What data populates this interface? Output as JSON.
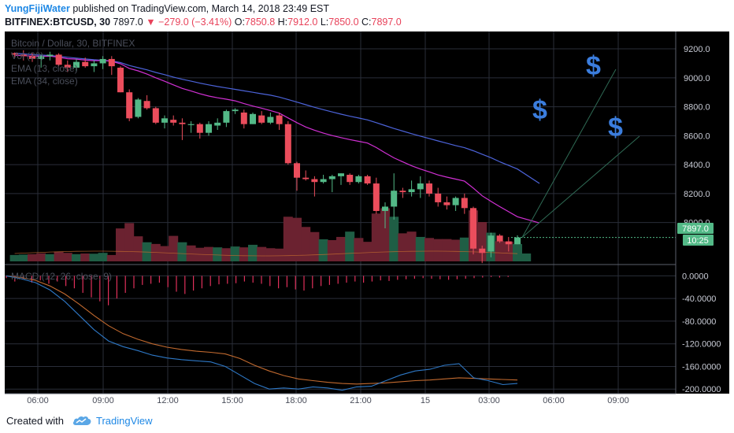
{
  "header": {
    "author": "YungFijiWater",
    "published": "published on TradingView.com, March 14, 2018 23:49 EST",
    "symbol": "BITFINEX:BTCUSD, 30",
    "last": "7897.0",
    "change": "−279.0 (−3.41%)",
    "o_label": "O:",
    "o_value": "7850.8",
    "h_label": "H:",
    "h_value": "7912.0",
    "l_label": "L:",
    "l_value": "7850.0",
    "c_label": "C:",
    "c_value": "7897.0"
  },
  "legend": {
    "title": "Bitcoin / Dollar, 30, BITFINEX",
    "vol": "Vol (20)",
    "ema13": "EMA (13, close)",
    "ema34": "EMA (34, close)"
  },
  "macd_legend": "MACD (12, 26, close, 9)",
  "price_badge": "7897.0",
  "time_badge": "10:25",
  "annotation_symbol": "$",
  "footer": {
    "created": "Created with",
    "brand": "TradingView"
  },
  "colors": {
    "up": "#53b987",
    "down": "#eb4d5c",
    "ema13": "#d130d4",
    "ema34": "#4c63d9",
    "macd": "#2e78c6",
    "signal": "#c26a2f",
    "accent": "#1e88e5"
  },
  "chart_data": {
    "type": "candlestick",
    "title": "Bitcoin / Dollar, 30, BITFINEX",
    "x_ticks": [
      "06:00",
      "09:00",
      "12:00",
      "15:00",
      "18:00",
      "21:00",
      "15",
      "03:00",
      "06:00",
      "09:00"
    ],
    "price_ticks": [
      9200,
      9000,
      8800,
      8600,
      8400,
      8200,
      8000
    ],
    "macd_ticks": [
      "0.0000",
      "-40.0000",
      "-80.0000",
      "-120.0000",
      "-160.0000",
      "-200.0000"
    ],
    "ylim_price": [
      7710,
      9320
    ],
    "ylim_macd": [
      -208,
      20
    ],
    "candles": [
      [
        9170,
        9175,
        9140,
        9160
      ],
      [
        9160,
        9190,
        9120,
        9150
      ],
      [
        9150,
        9170,
        9110,
        9130
      ],
      [
        9130,
        9160,
        9070,
        9150
      ],
      [
        9150,
        9180,
        9120,
        9160
      ],
      [
        9160,
        9170,
        9080,
        9090
      ],
      [
        9090,
        9120,
        9040,
        9070
      ],
      [
        9070,
        9130,
        9040,
        9110
      ],
      [
        9110,
        9140,
        9070,
        9080
      ],
      [
        9080,
        9120,
        9040,
        9100
      ],
      [
        9100,
        9150,
        9060,
        9130
      ],
      [
        9130,
        9150,
        9020,
        9080
      ],
      [
        9070,
        9080,
        8900,
        8900
      ],
      [
        8900,
        8920,
        8700,
        8720
      ],
      [
        8730,
        8860,
        8720,
        8850
      ],
      [
        8840,
        8880,
        8780,
        8790
      ],
      [
        8790,
        8800,
        8680,
        8690
      ],
      [
        8690,
        8740,
        8650,
        8720
      ],
      [
        8710,
        8740,
        8670,
        8690
      ],
      [
        8690,
        8720,
        8570,
        8680
      ],
      [
        8680,
        8700,
        8620,
        8680
      ],
      [
        8680,
        8690,
        8580,
        8620
      ],
      [
        8620,
        8700,
        8600,
        8680
      ],
      [
        8670,
        8720,
        8640,
        8690
      ],
      [
        8690,
        8780,
        8660,
        8770
      ],
      [
        8770,
        8790,
        8750,
        8780
      ],
      [
        8760,
        8780,
        8650,
        8680
      ],
      [
        8680,
        8760,
        8680,
        8750
      ],
      [
        8740,
        8770,
        8680,
        8690
      ],
      [
        8690,
        8760,
        8680,
        8730
      ],
      [
        8740,
        8760,
        8640,
        8680
      ],
      [
        8680,
        8700,
        8400,
        8410
      ],
      [
        8410,
        8420,
        8220,
        8310
      ],
      [
        8310,
        8360,
        8290,
        8300
      ],
      [
        8300,
        8320,
        8180,
        8280
      ],
      [
        8280,
        8330,
        8270,
        8300
      ],
      [
        8300,
        8330,
        8210,
        8320
      ],
      [
        8320,
        8340,
        8260,
        8340
      ],
      [
        8330,
        8340,
        8260,
        8280
      ],
      [
        8280,
        8330,
        8270,
        8320
      ],
      [
        8320,
        8330,
        8260,
        8270
      ],
      [
        8270,
        8310,
        8060,
        8080
      ],
      [
        8080,
        8140,
        7960,
        8110
      ],
      [
        8110,
        8340,
        8020,
        8220
      ],
      [
        8220,
        8240,
        8170,
        8210
      ],
      [
        8210,
        8290,
        8180,
        8230
      ],
      [
        8230,
        8320,
        8170,
        8270
      ],
      [
        8270,
        8290,
        8180,
        8200
      ],
      [
        8200,
        8240,
        8110,
        8140
      ],
      [
        8140,
        8180,
        8090,
        8120
      ],
      [
        8120,
        8180,
        8080,
        8170
      ],
      [
        8170,
        8200,
        8060,
        8100
      ],
      [
        8100,
        8110,
        7780,
        7820
      ],
      [
        7820,
        7840,
        7720,
        7790
      ],
      [
        7800,
        7930,
        7760,
        7910
      ],
      [
        7910,
        7920,
        7860,
        7870
      ],
      [
        7870,
        7900,
        7800,
        7850
      ],
      [
        7850,
        7912,
        7850,
        7897
      ]
    ],
    "volume": [
      [
        "up",
        30
      ],
      [
        "up",
        32
      ],
      [
        "down",
        34
      ],
      [
        "down",
        38
      ],
      [
        "up",
        34
      ],
      [
        "down",
        46
      ],
      [
        "down",
        40
      ],
      [
        "up",
        34
      ],
      [
        "down",
        37
      ],
      [
        "up",
        36
      ],
      [
        "up",
        40
      ],
      [
        "down",
        30
      ],
      [
        "down",
        155
      ],
      [
        "down",
        180
      ],
      [
        "down",
        118
      ],
      [
        "up",
        90
      ],
      [
        "down",
        82
      ],
      [
        "down",
        72
      ],
      [
        "down",
        120
      ],
      [
        "up",
        90
      ],
      [
        "down",
        75
      ],
      [
        "down",
        64
      ],
      [
        "down",
        68
      ],
      [
        "up",
        66
      ],
      [
        "down",
        62
      ],
      [
        "up",
        70
      ],
      [
        "down",
        66
      ],
      [
        "up",
        78
      ],
      [
        "down",
        68
      ],
      [
        "down",
        62
      ],
      [
        "down",
        60
      ],
      [
        "down",
        210
      ],
      [
        "down",
        205
      ],
      [
        "down",
        162
      ],
      [
        "down",
        138
      ],
      [
        "up",
        104
      ],
      [
        "down",
        100
      ],
      [
        "down",
        115
      ],
      [
        "up",
        140
      ],
      [
        "down",
        110
      ],
      [
        "down",
        92
      ],
      [
        "down",
        225
      ],
      [
        "down",
        250
      ],
      [
        "up",
        210
      ],
      [
        "down",
        132
      ],
      [
        "down",
        140
      ],
      [
        "up",
        115
      ],
      [
        "down",
        110
      ],
      [
        "down",
        105
      ],
      [
        "down",
        105
      ],
      [
        "down",
        102
      ],
      [
        "up",
        112
      ],
      [
        "down",
        240
      ],
      [
        "down",
        185
      ],
      [
        "up",
        135
      ],
      [
        "down",
        95
      ],
      [
        "down",
        93
      ],
      [
        "up",
        82
      ]
    ],
    "ema13": [
      9155,
      9153,
      9149,
      9149,
      9150,
      9142,
      9132,
      9129,
      9122,
      9118,
      9120,
      9114,
      9097,
      9065,
      9048,
      9026,
      9000,
      8976,
      8951,
      8927,
      8909,
      8890,
      8874,
      8862,
      8852,
      8841,
      8822,
      8805,
      8790,
      8774,
      8756,
      8723,
      8690,
      8660,
      8638,
      8618,
      8601,
      8587,
      8573,
      8561,
      8549,
      8518,
      8482,
      8447,
      8419,
      8392,
      8370,
      8350,
      8329,
      8314,
      8300,
      8286,
      8238,
      8185,
      8147,
      8110,
      8075,
      8040
    ],
    "ema34": [
      9170,
      9165,
      9160,
      9157,
      9154,
      9148,
      9142,
      9136,
      9130,
      9125,
      9121,
      9117,
      9105,
      9085,
      9070,
      9055,
      9037,
      9022,
      9005,
      8990,
      8977,
      8963,
      8951,
      8940,
      8930,
      8920,
      8910,
      8900,
      8890,
      8880,
      8867,
      8850,
      8832,
      8814,
      8796,
      8780,
      8764,
      8749,
      8735,
      8722,
      8709,
      8690,
      8670,
      8650,
      8632,
      8614,
      8597,
      8581,
      8564,
      8548,
      8532,
      8517,
      8496,
      8472,
      8448,
      8420,
      8395,
      8370
    ],
    "ema13_extension_end": 7997,
    "ema34_extension_end": 8270,
    "macd_line": [
      0,
      -5,
      -12,
      -25,
      -45,
      -70,
      -95,
      -115,
      -125,
      -132,
      -140,
      -145,
      -148,
      -150,
      -152,
      -160,
      -175,
      -190,
      -200,
      -198,
      -200,
      -196,
      -198,
      -202,
      -196,
      -195,
      -185,
      -175,
      -168,
      -165,
      -158,
      -155,
      -180,
      -185,
      -192,
      -190
    ],
    "signal_line": [
      0,
      -3,
      -8,
      -18,
      -32,
      -50,
      -70,
      -88,
      -102,
      -112,
      -120,
      -126,
      -130,
      -133,
      -135,
      -138,
      -146,
      -158,
      -168,
      -176,
      -182,
      -185,
      -188,
      -190,
      -191,
      -190,
      -189,
      -187,
      -185,
      -184,
      -182,
      -180,
      -181,
      -182,
      -183,
      -184
    ],
    "macd_hist": [
      -4,
      -10,
      -5,
      -12,
      -8,
      -14,
      -10,
      -18,
      -22,
      -30,
      -38,
      -45,
      -52,
      -40,
      -30,
      -22,
      -16,
      -14,
      -12,
      -20,
      -28,
      -32,
      -26,
      -22,
      -18,
      -15,
      -14,
      -13,
      -10,
      -12,
      -14,
      -18,
      -22,
      -20,
      -24,
      -26,
      -22,
      -18,
      -16,
      -14,
      -12,
      -10,
      -12,
      -10,
      -8,
      -9,
      -7,
      -6,
      -5,
      -4,
      -5,
      -6,
      -7,
      -6,
      -5,
      -4,
      -3,
      -2,
      -3,
      -2
    ]
  }
}
